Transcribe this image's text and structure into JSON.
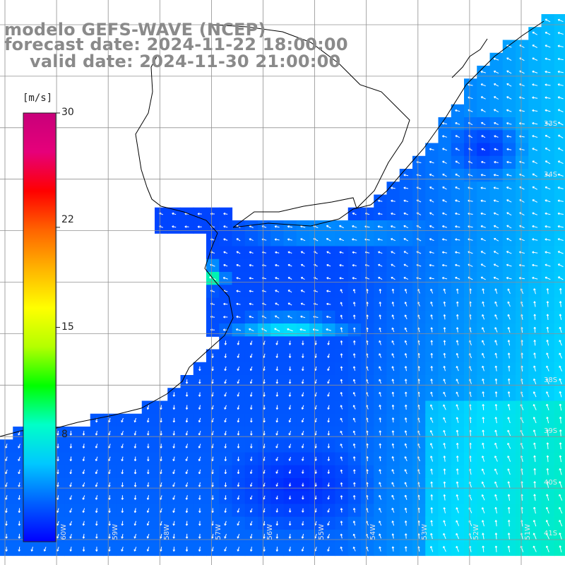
{
  "title": {
    "line1": "modelo GEFS-WAVE (NCEP)",
    "line2": "forecast date: 2024-11-22 18:00:00",
    "line3": "valid date: 2024-11-30 21:00:00"
  },
  "colorbar": {
    "unit": "[m/s]",
    "ticks": [
      "30",
      "22",
      "15",
      "8"
    ],
    "tick_values": [
      30,
      22,
      15,
      8
    ],
    "range": [
      0,
      30
    ],
    "colors": [
      "#0000ff",
      "#0060ff",
      "#00c8ff",
      "#00ffc8",
      "#00ff00",
      "#b4ff00",
      "#ffff00",
      "#ffb400",
      "#ff6400",
      "#ff0000",
      "#e6007a",
      "#c8007a"
    ]
  },
  "map": {
    "ocean_color": "#0050ff",
    "land_color": "#ffffff",
    "grid_color": "#909090",
    "coast_color": "#000000",
    "lat_labels": [
      "33S",
      "34S",
      "38S",
      "39S",
      "40S",
      "41S"
    ],
    "lon_labels": [
      "60W",
      "59W",
      "58W",
      "57W",
      "56W",
      "55W",
      "54W",
      "53W",
      "52W",
      "51W"
    ]
  }
}
